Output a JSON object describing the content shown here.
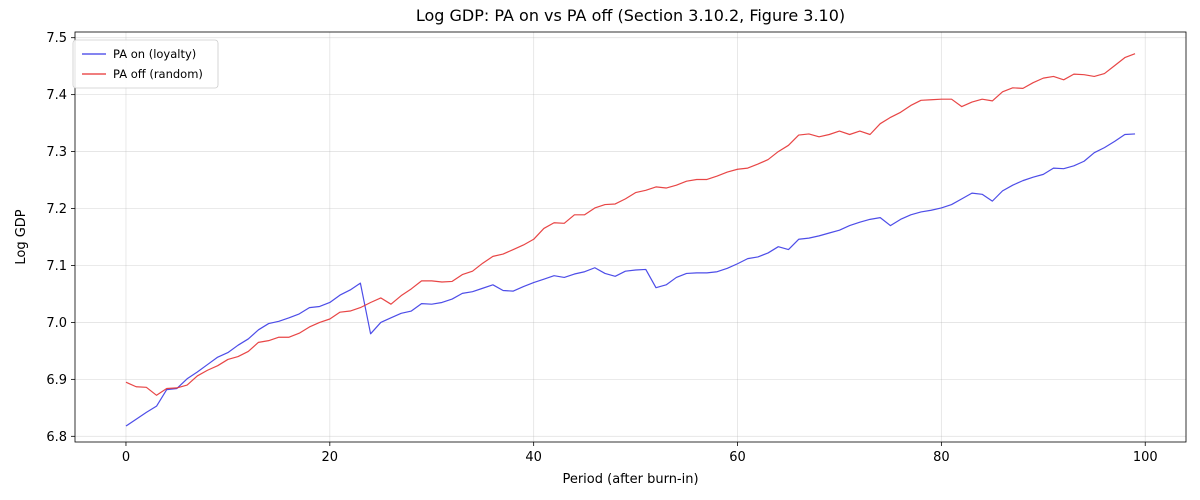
{
  "chart_data": {
    "type": "line",
    "title": "Log GDP: PA on vs PA off (Section 3.10.2, Figure 3.10)",
    "xlabel": "Period (after burn-in)",
    "ylabel": "Log GDP",
    "xlim": [
      -5,
      104
    ],
    "ylim": [
      6.79,
      7.51
    ],
    "xticks": [
      0,
      20,
      40,
      60,
      80,
      100
    ],
    "yticks": [
      6.8,
      6.9,
      7.0,
      7.1,
      7.2,
      7.3,
      7.4,
      7.5
    ],
    "xtick_labels": [
      "0",
      "20",
      "40",
      "60",
      "80",
      "100"
    ],
    "ytick_labels": [
      "6.8",
      "6.9",
      "7.0",
      "7.1",
      "7.2",
      "7.3",
      "7.4",
      "7.5"
    ],
    "grid": true,
    "legend_position": "top-left",
    "x_start": 0,
    "series": [
      {
        "name": "PA on (loyalty)",
        "color": "#3a3ae6",
        "values": [
          6.818,
          6.83,
          6.842,
          6.853,
          6.882,
          6.884,
          6.901,
          6.913,
          6.926,
          6.939,
          6.947,
          6.96,
          6.971,
          6.987,
          6.998,
          7.002,
          7.008,
          7.015,
          7.026,
          7.028,
          7.035,
          7.048,
          7.057,
          7.069,
          6.98,
          7.0,
          7.008,
          7.016,
          7.02,
          7.033,
          7.032,
          7.035,
          7.041,
          7.051,
          7.054,
          7.06,
          7.066,
          7.056,
          7.055,
          7.063,
          7.07,
          7.076,
          7.082,
          7.079,
          7.085,
          7.089,
          7.096,
          7.086,
          7.081,
          7.09,
          7.092,
          7.093,
          7.061,
          7.066,
          7.079,
          7.086,
          7.087,
          7.087,
          7.089,
          7.095,
          7.103,
          7.112,
          7.115,
          7.122,
          7.133,
          7.128,
          7.146,
          7.148,
          7.152,
          7.157,
          7.162,
          7.17,
          7.176,
          7.181,
          7.184,
          7.17,
          7.181,
          7.189,
          7.194,
          7.197,
          7.201,
          7.207,
          7.217,
          7.227,
          7.225,
          7.213,
          7.231,
          7.241,
          7.249,
          7.255,
          7.26,
          7.271,
          7.27,
          7.275,
          7.283,
          7.298,
          7.307,
          7.318,
          7.33,
          7.331
        ]
      },
      {
        "name": "PA off (random)",
        "color": "#e63232",
        "values": [
          6.895,
          6.887,
          6.886,
          6.872,
          6.884,
          6.885,
          6.89,
          6.906,
          6.916,
          6.924,
          6.935,
          6.94,
          6.949,
          6.965,
          6.968,
          6.974,
          6.974,
          6.981,
          6.992,
          7.0,
          7.006,
          7.018,
          7.02,
          7.026,
          7.035,
          7.043,
          7.032,
          7.047,
          7.059,
          7.073,
          7.073,
          7.071,
          7.072,
          7.084,
          7.09,
          7.104,
          7.116,
          7.12,
          7.128,
          7.136,
          7.146,
          7.165,
          7.175,
          7.174,
          7.189,
          7.189,
          7.201,
          7.207,
          7.208,
          7.217,
          7.228,
          7.232,
          7.238,
          7.236,
          7.241,
          7.248,
          7.251,
          7.251,
          7.257,
          7.264,
          7.269,
          7.271,
          7.278,
          7.286,
          7.3,
          7.311,
          7.329,
          7.331,
          7.326,
          7.33,
          7.336,
          7.33,
          7.336,
          7.33,
          7.349,
          7.36,
          7.369,
          7.381,
          7.39,
          7.391,
          7.392,
          7.392,
          7.379,
          7.387,
          7.392,
          7.389,
          7.405,
          7.412,
          7.411,
          7.421,
          7.429,
          7.432,
          7.426,
          7.436,
          7.435,
          7.432,
          7.437,
          7.451,
          7.465,
          7.472
        ]
      }
    ]
  }
}
